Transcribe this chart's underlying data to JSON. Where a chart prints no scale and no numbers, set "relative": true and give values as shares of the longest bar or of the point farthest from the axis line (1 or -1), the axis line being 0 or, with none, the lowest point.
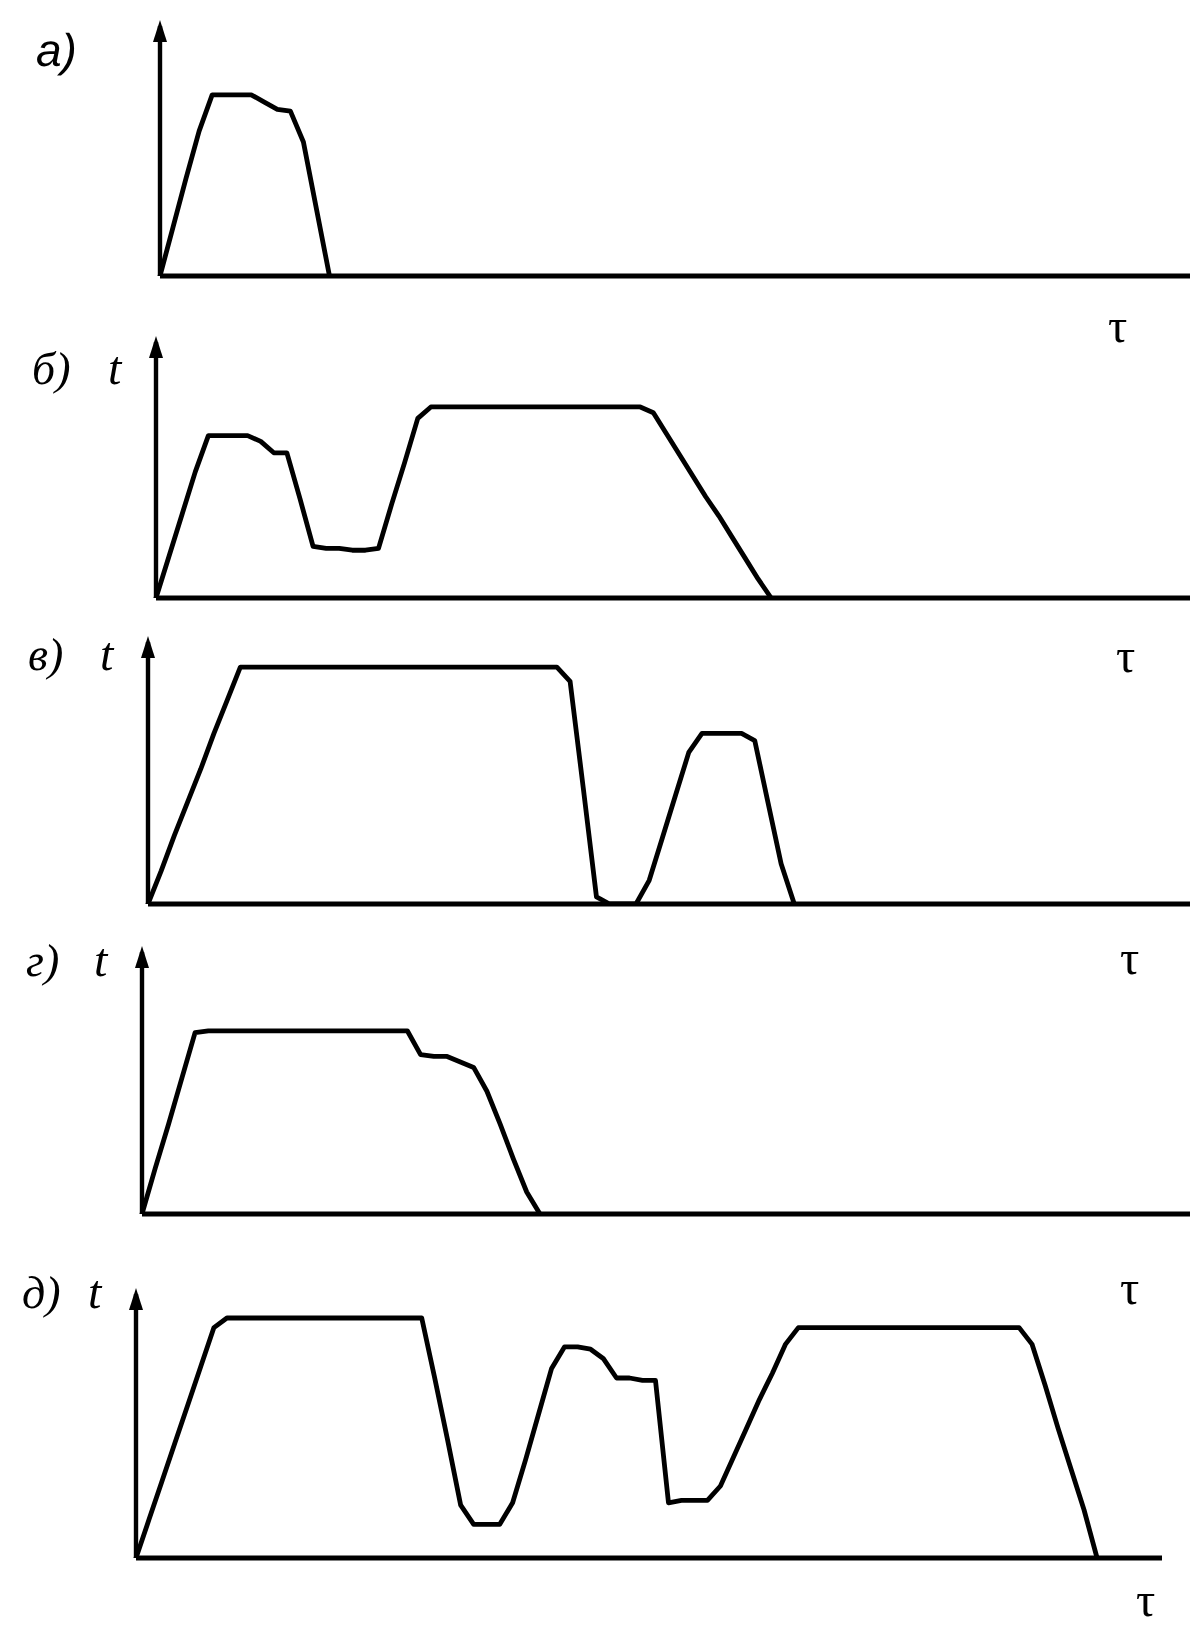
{
  "chart_data": [
    {
      "type": "line",
      "title": "а)",
      "xlabel": "τ",
      "relative": true,
      "marker": "none",
      "color": "#000000",
      "categories": [
        null,
        null,
        null,
        null,
        null,
        null,
        null,
        null,
        null,
        null,
        null,
        null,
        null,
        null,
        null,
        null,
        null,
        null,
        null,
        null,
        null,
        null,
        null,
        null,
        null,
        null,
        null,
        null,
        null,
        null,
        null,
        null,
        null,
        null,
        null,
        null,
        null,
        null,
        null,
        null,
        null,
        null,
        null,
        null,
        null,
        null,
        null,
        null,
        null,
        null,
        null,
        null,
        null,
        null,
        null,
        null,
        null,
        null,
        null,
        null,
        null,
        null,
        null,
        null,
        null,
        null,
        null,
        null,
        null,
        null,
        null,
        null,
        null,
        null,
        null,
        null,
        null,
        null,
        null,
        null
      ],
      "values": [
        0,
        0.27,
        0.54,
        0.8,
        1,
        1,
        1,
        1,
        0.96,
        0.92,
        0.91,
        0.74,
        0.37,
        0,
        null,
        null,
        null,
        null,
        null,
        null,
        null,
        null,
        null,
        null,
        null,
        null,
        null,
        null,
        null,
        null,
        null,
        null,
        null,
        null,
        null,
        null,
        null,
        null,
        null,
        null,
        null,
        null,
        null,
        null,
        null,
        null,
        null,
        null,
        null,
        null,
        null,
        null,
        null,
        null,
        null,
        null,
        null,
        null,
        null,
        null,
        null,
        null,
        null,
        null,
        null,
        null,
        null,
        null,
        null,
        null,
        null,
        null,
        null,
        null,
        null,
        null,
        null,
        null,
        null,
        null
      ]
    },
    {
      "type": "line",
      "title": "б)",
      "ylabel": "t",
      "xlabel": "τ",
      "relative": true,
      "marker": "none",
      "color": "#000000",
      "categories": [
        null,
        null,
        null,
        null,
        null,
        null,
        null,
        null,
        null,
        null,
        null,
        null,
        null,
        null,
        null,
        null,
        null,
        null,
        null,
        null,
        null,
        null,
        null,
        null,
        null,
        null,
        null,
        null,
        null,
        null,
        null,
        null,
        null,
        null,
        null,
        null,
        null,
        null,
        null,
        null,
        null,
        null,
        null,
        null,
        null,
        null,
        null,
        null,
        null,
        null,
        null,
        null,
        null,
        null,
        null,
        null,
        null,
        null,
        null,
        null,
        null,
        null,
        null,
        null,
        null,
        null,
        null,
        null,
        null,
        null,
        null,
        null,
        null,
        null,
        null,
        null,
        null,
        null,
        null,
        null
      ],
      "values": [
        0,
        0.22,
        0.44,
        0.66,
        0.85,
        0.85,
        0.85,
        0.85,
        0.82,
        0.76,
        0.76,
        0.52,
        0.27,
        0.26,
        0.26,
        0.25,
        0.25,
        0.26,
        0.49,
        0.71,
        0.94,
        1,
        1,
        1,
        1,
        1,
        1,
        1,
        1,
        1,
        1,
        1,
        1,
        1,
        1,
        1,
        1,
        1,
        0.97,
        0.86,
        0.75,
        0.64,
        0.53,
        0.43,
        0.32,
        0.21,
        0.1,
        0,
        null,
        null,
        null,
        null,
        null,
        null,
        null,
        null,
        null,
        null,
        null,
        null,
        null,
        null,
        null,
        null,
        null,
        null,
        null,
        null,
        null,
        null,
        null,
        null,
        null,
        null,
        null,
        null,
        null,
        null,
        null,
        null
      ]
    },
    {
      "type": "line",
      "title": "в)",
      "ylabel": "t",
      "xlabel": "τ",
      "relative": true,
      "marker": "none",
      "color": "#000000",
      "categories": [
        null,
        null,
        null,
        null,
        null,
        null,
        null,
        null,
        null,
        null,
        null,
        null,
        null,
        null,
        null,
        null,
        null,
        null,
        null,
        null,
        null,
        null,
        null,
        null,
        null,
        null,
        null,
        null,
        null,
        null,
        null,
        null,
        null,
        null,
        null,
        null,
        null,
        null,
        null,
        null,
        null,
        null,
        null,
        null,
        null,
        null,
        null,
        null,
        null,
        null,
        null,
        null,
        null,
        null,
        null,
        null,
        null,
        null,
        null,
        null,
        null,
        null,
        null,
        null,
        null,
        null,
        null,
        null,
        null,
        null,
        null,
        null,
        null,
        null,
        null,
        null,
        null,
        null,
        null,
        null
      ],
      "values": [
        0,
        0.14,
        0.29,
        0.43,
        0.57,
        0.72,
        0.86,
        1,
        1,
        1,
        1,
        1,
        1,
        1,
        1,
        1,
        1,
        1,
        1,
        1,
        1,
        1,
        1,
        1,
        1,
        1,
        1,
        1,
        1,
        1,
        1,
        1,
        0.94,
        0.49,
        0.03,
        0,
        0,
        0,
        0.1,
        0.28,
        0.46,
        0.64,
        0.72,
        0.72,
        0.72,
        0.72,
        0.69,
        0.43,
        0.17,
        0,
        null,
        null,
        null,
        null,
        null,
        null,
        null,
        null,
        null,
        null,
        null,
        null,
        null,
        null,
        null,
        null,
        null,
        null,
        null,
        null,
        null,
        null,
        null,
        null,
        null,
        null,
        null,
        null,
        null,
        null
      ]
    },
    {
      "type": "line",
      "title": "г)",
      "ylabel": "t",
      "xlabel": "τ",
      "relative": true,
      "marker": "none",
      "color": "#000000",
      "categories": [
        null,
        null,
        null,
        null,
        null,
        null,
        null,
        null,
        null,
        null,
        null,
        null,
        null,
        null,
        null,
        null,
        null,
        null,
        null,
        null,
        null,
        null,
        null,
        null,
        null,
        null,
        null,
        null,
        null,
        null,
        null,
        null,
        null,
        null,
        null,
        null,
        null,
        null,
        null,
        null,
        null,
        null,
        null,
        null,
        null,
        null,
        null,
        null,
        null,
        null,
        null,
        null,
        null,
        null,
        null,
        null,
        null,
        null,
        null,
        null,
        null,
        null,
        null,
        null,
        null,
        null,
        null,
        null,
        null,
        null,
        null,
        null,
        null,
        null,
        null,
        null,
        null,
        null,
        null,
        null
      ],
      "values": [
        0,
        0.25,
        0.49,
        0.74,
        0.99,
        1,
        1,
        1,
        1,
        1,
        1,
        1,
        1,
        1,
        1,
        1,
        1,
        1,
        1,
        1,
        1,
        0.87,
        0.86,
        0.86,
        0.83,
        0.8,
        0.67,
        0.49,
        0.3,
        0.12,
        0,
        null,
        null,
        null,
        null,
        null,
        null,
        null,
        null,
        null,
        null,
        null,
        null,
        null,
        null,
        null,
        null,
        null,
        null,
        null,
        null,
        null,
        null,
        null,
        null,
        null,
        null,
        null,
        null,
        null,
        null,
        null,
        null,
        null,
        null,
        null,
        null,
        null,
        null,
        null,
        null,
        null,
        null,
        null,
        null,
        null,
        null,
        null,
        null,
        null
      ]
    },
    {
      "type": "line",
      "title": "д)",
      "ylabel": "t",
      "xlabel": "τ",
      "relative": true,
      "marker": "none",
      "color": "#000000",
      "categories": [
        null,
        null,
        null,
        null,
        null,
        null,
        null,
        null,
        null,
        null,
        null,
        null,
        null,
        null,
        null,
        null,
        null,
        null,
        null,
        null,
        null,
        null,
        null,
        null,
        null,
        null,
        null,
        null,
        null,
        null,
        null,
        null,
        null,
        null,
        null,
        null,
        null,
        null,
        null,
        null,
        null,
        null,
        null,
        null,
        null,
        null,
        null,
        null,
        null,
        null,
        null,
        null,
        null,
        null,
        null,
        null,
        null,
        null,
        null,
        null,
        null,
        null,
        null,
        null,
        null,
        null,
        null,
        null,
        null,
        null,
        null,
        null,
        null,
        null,
        null,
        null,
        null,
        null,
        null,
        null
      ],
      "values": [
        0,
        0.16,
        0.32,
        0.48,
        0.64,
        0.8,
        0.96,
        1,
        1,
        1,
        1,
        1,
        1,
        1,
        1,
        1,
        1,
        1,
        1,
        1,
        1,
        1,
        1,
        0.75,
        0.49,
        0.22,
        0.14,
        0.14,
        0.14,
        0.23,
        0.41,
        0.6,
        0.79,
        0.88,
        0.88,
        0.87,
        0.83,
        0.75,
        0.75,
        0.74,
        0.74,
        0.23,
        0.24,
        0.24,
        0.24,
        0.3,
        0.42,
        0.54,
        0.66,
        0.77,
        0.89,
        0.96,
        0.96,
        0.96,
        0.96,
        0.96,
        0.96,
        0.96,
        0.96,
        0.96,
        0.96,
        0.96,
        0.96,
        0.96,
        0.96,
        0.96,
        0.96,
        0.96,
        0.96,
        0.89,
        0.72,
        0.54,
        0.37,
        0.2,
        0,
        null,
        null,
        null,
        null,
        null
      ]
    }
  ]
}
